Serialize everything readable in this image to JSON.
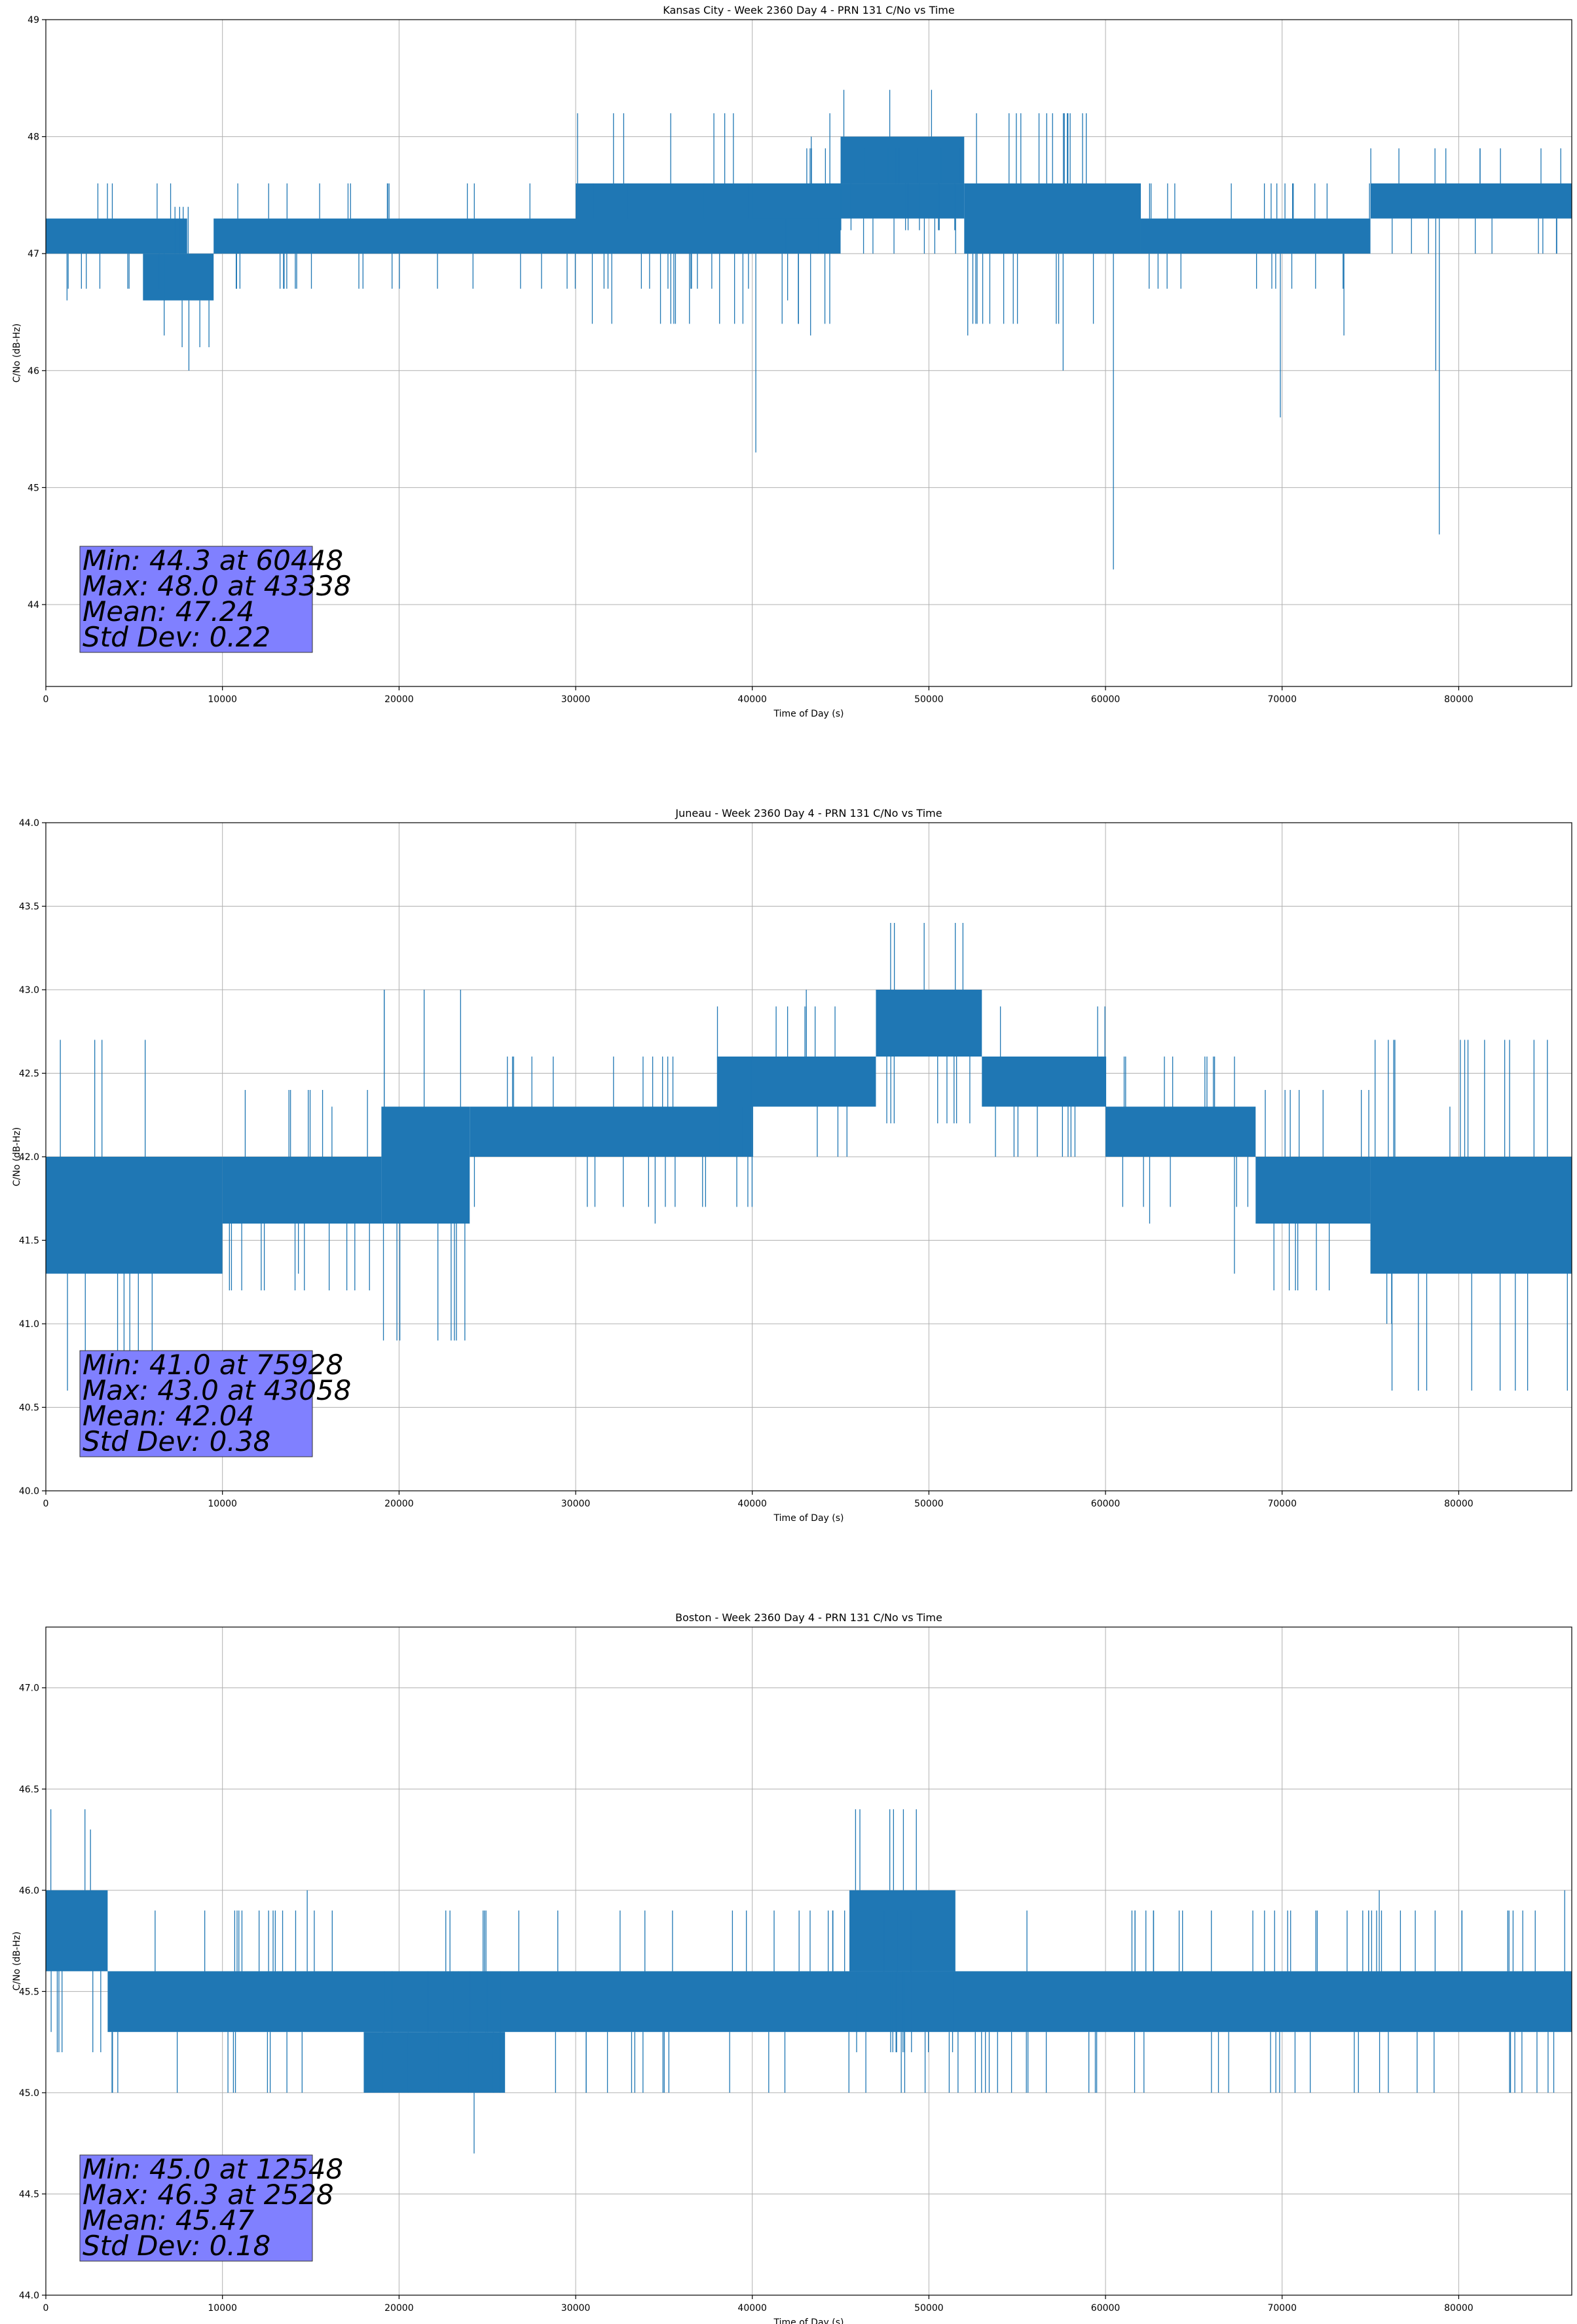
{
  "chart_data": [
    {
      "type": "line",
      "title": "Kansas City - Week 2360 Day 4 - PRN 131 C/No vs Time",
      "xlabel": "Time of Day (s)",
      "ylabel": "C/No (dB-Hz)",
      "xlim": [
        0,
        86400
      ],
      "ylim": [
        43.3,
        49.0
      ],
      "xticks": [
        0,
        10000,
        20000,
        30000,
        40000,
        50000,
        60000,
        70000,
        80000
      ],
      "yticks": [
        44,
        45,
        46,
        47,
        48,
        49
      ],
      "ytick_labels": [
        "44",
        "45",
        "46",
        "47",
        "48",
        "49"
      ],
      "grid": true,
      "series_color": "#1f77b4",
      "series": [
        {
          "segments": [
            {
              "x": [
                0,
                8000
              ],
              "low": 47.0,
              "high": 47.3
            },
            {
              "x": [
                5500,
                9500
              ],
              "low": 46.6,
              "high": 47.0
            },
            {
              "x": [
                9500,
                40000
              ],
              "low": 47.0,
              "high": 47.3
            },
            {
              "x": [
                30000,
                45000
              ],
              "low": 47.0,
              "high": 47.6
            },
            {
              "x": [
                40000,
                52000
              ],
              "low": 47.3,
              "high": 47.6
            },
            {
              "x": [
                45000,
                52000
              ],
              "low": 47.6,
              "high": 48.0
            },
            {
              "x": [
                52000,
                62000
              ],
              "low": 47.0,
              "high": 47.6
            },
            {
              "x": [
                62000,
                75000
              ],
              "low": 47.0,
              "high": 47.3
            },
            {
              "x": [
                75000,
                86400
              ],
              "low": 47.3,
              "high": 47.6
            }
          ],
          "spikes": [
            {
              "x": 6700,
              "y": 46.3
            },
            {
              "x": 8100,
              "y": 46.0
            },
            {
              "x": 1200,
              "y": 46.6
            },
            {
              "x": 40200,
              "y": 45.3
            },
            {
              "x": 43300,
              "y": 46.3
            },
            {
              "x": 42000,
              "y": 46.6
            },
            {
              "x": 57600,
              "y": 46.0
            },
            {
              "x": 60448,
              "y": 44.3
            },
            {
              "x": 52200,
              "y": 46.3
            },
            {
              "x": 69900,
              "y": 45.6
            },
            {
              "x": 73500,
              "y": 46.3
            },
            {
              "x": 78700,
              "y": 46.0
            },
            {
              "x": 78900,
              "y": 44.6
            },
            {
              "x": 43338,
              "y": 48.0
            }
          ]
        }
      ],
      "annotation": [
        "Min: 44.3 at 60448",
        "Max: 48.0 at 43338",
        "Mean: 47.24",
        "Std Dev: 0.22"
      ]
    },
    {
      "type": "line",
      "title": "Juneau - Week 2360 Day 4 - PRN 131 C/No vs Time",
      "xlabel": "Time of Day (s)",
      "ylabel": "C/No (dB-Hz)",
      "xlim": [
        0,
        86400
      ],
      "ylim": [
        40.0,
        44.0
      ],
      "xticks": [
        0,
        10000,
        20000,
        30000,
        40000,
        50000,
        60000,
        70000,
        80000
      ],
      "yticks": [
        40.0,
        40.5,
        41.0,
        41.5,
        42.0,
        42.5,
        43.0,
        43.5,
        44.0
      ],
      "ytick_labels": [
        "40.0",
        "40.5",
        "41.0",
        "41.5",
        "42.0",
        "42.5",
        "43.0",
        "43.5",
        "44.0"
      ],
      "grid": true,
      "series_color": "#1f77b4",
      "series": [
        {
          "segments": [
            {
              "x": [
                0,
                10000
              ],
              "low": 41.3,
              "high": 42.0
            },
            {
              "x": [
                10000,
                19000
              ],
              "low": 41.6,
              "high": 42.0
            },
            {
              "x": [
                19000,
                24000
              ],
              "low": 41.6,
              "high": 42.3
            },
            {
              "x": [
                24000,
                40000
              ],
              "low": 42.0,
              "high": 42.3
            },
            {
              "x": [
                38000,
                47000
              ],
              "low": 42.3,
              "high": 42.6
            },
            {
              "x": [
                47000,
                53000
              ],
              "low": 42.6,
              "high": 43.0
            },
            {
              "x": [
                53000,
                60000
              ],
              "low": 42.3,
              "high": 42.6
            },
            {
              "x": [
                60000,
                68500
              ],
              "low": 42.0,
              "high": 42.3
            },
            {
              "x": [
                68500,
                75000
              ],
              "low": 41.6,
              "high": 42.0
            },
            {
              "x": [
                75000,
                86400
              ],
              "low": 41.3,
              "high": 42.0
            }
          ],
          "spikes": [
            {
              "x": 75928,
              "y": 41.0
            },
            {
              "x": 76200,
              "y": 41.0
            },
            {
              "x": 43058,
              "y": 43.0
            },
            {
              "x": 16200,
              "y": 42.3
            },
            {
              "x": 14300,
              "y": 41.3
            },
            {
              "x": 67300,
              "y": 41.3
            },
            {
              "x": 79500,
              "y": 42.3
            },
            {
              "x": 34500,
              "y": 41.6
            },
            {
              "x": 62500,
              "y": 41.6
            }
          ]
        }
      ],
      "annotation": [
        "Min: 41.0 at 75928",
        "Max: 43.0 at 43058",
        "Mean: 42.04",
        "Std Dev: 0.38"
      ]
    },
    {
      "type": "line",
      "title": "Boston - Week 2360 Day 4 - PRN 131 C/No vs Time",
      "xlabel": "Time of Day (s)",
      "ylabel": "C/No (dB-Hz)",
      "xlim": [
        0,
        86400
      ],
      "ylim": [
        44.0,
        47.3
      ],
      "xticks": [
        0,
        10000,
        20000,
        30000,
        40000,
        50000,
        60000,
        70000,
        80000
      ],
      "yticks": [
        44.0,
        44.5,
        45.0,
        45.5,
        46.0,
        46.5,
        47.0
      ],
      "ytick_labels": [
        "44.0",
        "44.5",
        "45.0",
        "45.5",
        "46.0",
        "46.5",
        "47.0"
      ],
      "grid": true,
      "series_color": "#1f77b4",
      "series": [
        {
          "segments": [
            {
              "x": [
                0,
                3500
              ],
              "low": 45.6,
              "high": 46.0
            },
            {
              "x": [
                3500,
                86400
              ],
              "low": 45.3,
              "high": 45.6
            },
            {
              "x": [
                18000,
                26000
              ],
              "low": 45.0,
              "high": 45.3
            },
            {
              "x": [
                45500,
                51500
              ],
              "low": 45.6,
              "high": 46.0
            }
          ],
          "spikes": [
            {
              "x": 2528,
              "y": 46.3
            },
            {
              "x": 12548,
              "y": 45.0
            },
            {
              "x": 14800,
              "y": 46.0
            },
            {
              "x": 31800,
              "y": 45.0
            },
            {
              "x": 53200,
              "y": 45.0
            },
            {
              "x": 59500,
              "y": 45.0
            },
            {
              "x": 66000,
              "y": 45.0
            },
            {
              "x": 75500,
              "y": 46.0
            },
            {
              "x": 86000,
              "y": 46.0
            },
            {
              "x": 300,
              "y": 45.3
            }
          ]
        }
      ],
      "annotation": [
        "Min: 45.0 at 12548",
        "Max: 46.3 at 2528",
        "Mean: 45.47",
        "Std Dev: 0.18"
      ]
    }
  ]
}
